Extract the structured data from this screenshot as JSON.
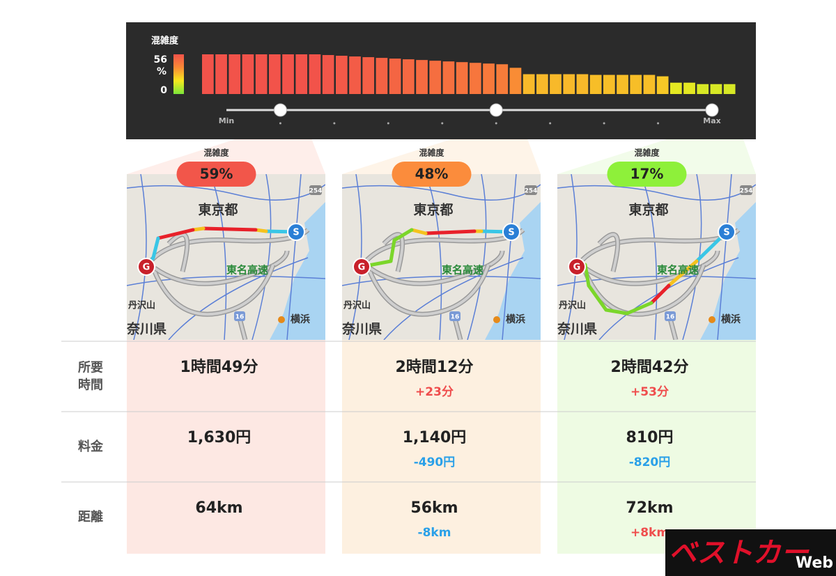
{
  "congestion_bar": {
    "label": "混雑度",
    "unit": "%",
    "ylim": [
      0,
      56
    ],
    "yticks": [
      0,
      56
    ],
    "values": [
      56,
      56,
      56,
      56,
      56,
      56,
      56,
      56,
      56,
      55,
      54,
      53,
      52,
      51,
      50,
      49,
      48,
      47,
      46,
      45,
      44,
      43,
      42,
      37,
      28,
      28,
      28,
      28,
      28,
      27,
      27,
      27,
      27,
      27,
      25,
      16,
      16,
      14,
      14,
      14
    ],
    "color_scale": [
      "#7be63a",
      "#f6e81e",
      "#f98a35",
      "#f2534a"
    ]
  },
  "slider": {
    "min_label": "Min",
    "max_label": "Max",
    "steps": 10,
    "knobs": [
      1,
      5,
      9
    ]
  },
  "map_labels": {
    "prefecture": "東京都",
    "expressway": "東名高速",
    "mountain": "丹沢山",
    "kanagawa": "奈川県",
    "yokohama": "横浜",
    "route_254": "254",
    "route_16": "16",
    "start": "S",
    "goal": "G"
  },
  "table": {
    "headers": [
      [
        "所要",
        "時間"
      ],
      [
        "料金"
      ],
      [
        "距離"
      ]
    ]
  },
  "routes": [
    {
      "congestion_label": "混雑度",
      "congestion": "59%",
      "color": "#f2564a",
      "background": "#fde8e3",
      "rows": [
        {
          "main": "1時間49分"
        },
        {
          "main": "1,630円"
        },
        {
          "main": "64km"
        }
      ]
    },
    {
      "congestion_label": "混雑度",
      "congestion": "48%",
      "color": "#fb8c3c",
      "background": "#fdf0e0",
      "rows": [
        {
          "main": "2時間12分",
          "diff": "+23分",
          "diff_color": "#ef4d4d"
        },
        {
          "main": "1,140円",
          "diff": "-490円",
          "diff_color": "#2aa0e8"
        },
        {
          "main": "56km",
          "diff": "-8km",
          "diff_color": "#2aa0e8"
        }
      ]
    },
    {
      "congestion_label": "混雑度",
      "congestion": "17%",
      "color": "#8ef03a",
      "background": "#eefbe3",
      "rows": [
        {
          "main": "2時間42分",
          "diff": "+53分",
          "diff_color": "#ef4d4d"
        },
        {
          "main": "810円",
          "diff": "-820円",
          "diff_color": "#2aa0e8"
        },
        {
          "main": "72km",
          "diff": "+8km",
          "diff_color": "#ef4d4d"
        }
      ]
    }
  ],
  "logo": {
    "main": "ベストカー",
    "sub": "Web"
  }
}
